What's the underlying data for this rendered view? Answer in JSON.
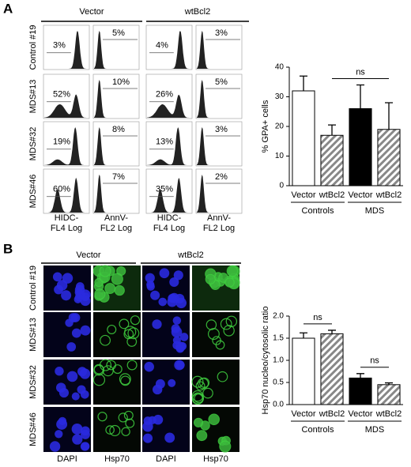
{
  "panel_a": {
    "label": "A",
    "column_groups": [
      "Vector",
      "wtBcl2"
    ],
    "rows": [
      "Control #19",
      "MDS#13",
      "MDS#32",
      "MDS#46"
    ],
    "percentages": [
      [
        "3%",
        "5%",
        "4%",
        "3%"
      ],
      [
        "52%",
        "10%",
        "26%",
        "5%"
      ],
      [
        "19%",
        "8%",
        "13%",
        "3%"
      ],
      [
        "60%",
        "7%",
        "35%",
        "2%"
      ]
    ],
    "axis_labels": [
      [
        "HIDC-",
        "FL4 Log"
      ],
      [
        "AnnV-",
        "FL2 Log"
      ],
      [
        "HIDC-",
        "FL4 Log"
      ],
      [
        "AnnV-",
        "FL2 Log"
      ]
    ]
  },
  "chart_a": {
    "type": "bar",
    "y_label": "% GPA+ cells",
    "categories": [
      "Vector",
      "wtBcl2",
      "Vector",
      "wtBcl2"
    ],
    "groups": [
      "Controls",
      "MDS"
    ],
    "values": [
      32,
      17,
      26,
      19
    ],
    "errors": [
      5,
      3.5,
      8,
      9
    ],
    "bar_styles": [
      "white",
      "hatch",
      "black",
      "hatch"
    ],
    "ylim": [
      0,
      40
    ],
    "yticks": [
      0,
      10,
      20,
      30,
      40
    ],
    "annotations": [
      "ns"
    ]
  },
  "panel_b": {
    "label": "B",
    "column_groups": [
      "Vector",
      "wtBcl2"
    ],
    "rows": [
      "Control #19",
      "MDS#13",
      "MDS#32",
      "MDS#46"
    ],
    "column_labels": [
      "DAPI",
      "Hsp70",
      "DAPI",
      "Hsp70"
    ]
  },
  "chart_b": {
    "type": "bar",
    "y_label": "Hsp70 nucleo/cytosolic ratio",
    "categories": [
      "Vector",
      "wtBcl2",
      "Vector",
      "wtBcl2"
    ],
    "groups": [
      "Controls",
      "MDS"
    ],
    "values": [
      1.5,
      1.6,
      0.6,
      0.45
    ],
    "errors": [
      0.12,
      0.08,
      0.1,
      0.04
    ],
    "bar_styles": [
      "white",
      "hatch",
      "black",
      "hatch"
    ],
    "ylim": [
      0,
      2
    ],
    "yticks": [
      {
        "value": 0,
        "label": "0.0"
      },
      {
        "value": 0.5,
        "label": "0.5"
      },
      {
        "value": 1,
        "label": "1.0"
      },
      {
        "value": 1.5,
        "label": "1.5"
      },
      {
        "value": 2,
        "label": "2.0"
      }
    ],
    "annotations": [
      "ns",
      "ns"
    ]
  }
}
